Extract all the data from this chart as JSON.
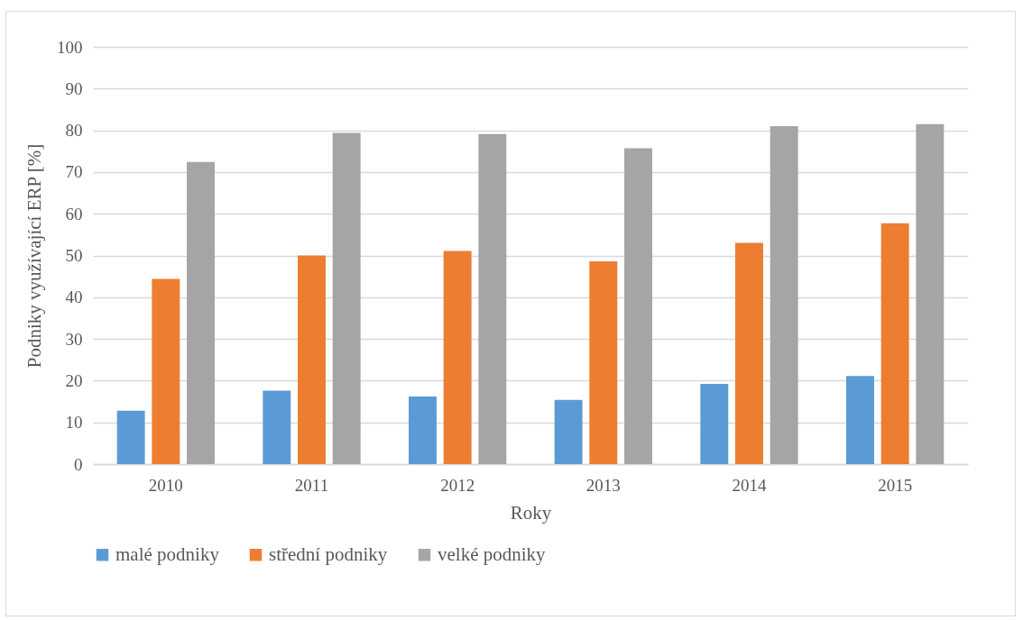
{
  "chart_data": {
    "type": "bar",
    "xlabel": "Roky",
    "ylabel": "Podniky využívající ERP [%]",
    "categories": [
      "2010",
      "2011",
      "2012",
      "2013",
      "2014",
      "2015"
    ],
    "series": [
      {
        "name": "malé podniky",
        "color": "#5b9bd5",
        "values": [
          12.8,
          17.6,
          16.2,
          15.4,
          19.2,
          21.1
        ]
      },
      {
        "name": "střední podniky",
        "color": "#ed7d31",
        "values": [
          44.4,
          50.0,
          51.1,
          48.6,
          53.0,
          57.7
        ]
      },
      {
        "name": "velké podniky",
        "color": "#a5a5a5",
        "values": [
          72.4,
          79.4,
          79.1,
          75.7,
          81.0,
          81.5
        ]
      }
    ],
    "ylim": [
      0,
      100
    ],
    "yticks": [
      0,
      10,
      20,
      30,
      40,
      50,
      60,
      70,
      80,
      90,
      100
    ],
    "grid": "y",
    "legend": "bottom"
  }
}
